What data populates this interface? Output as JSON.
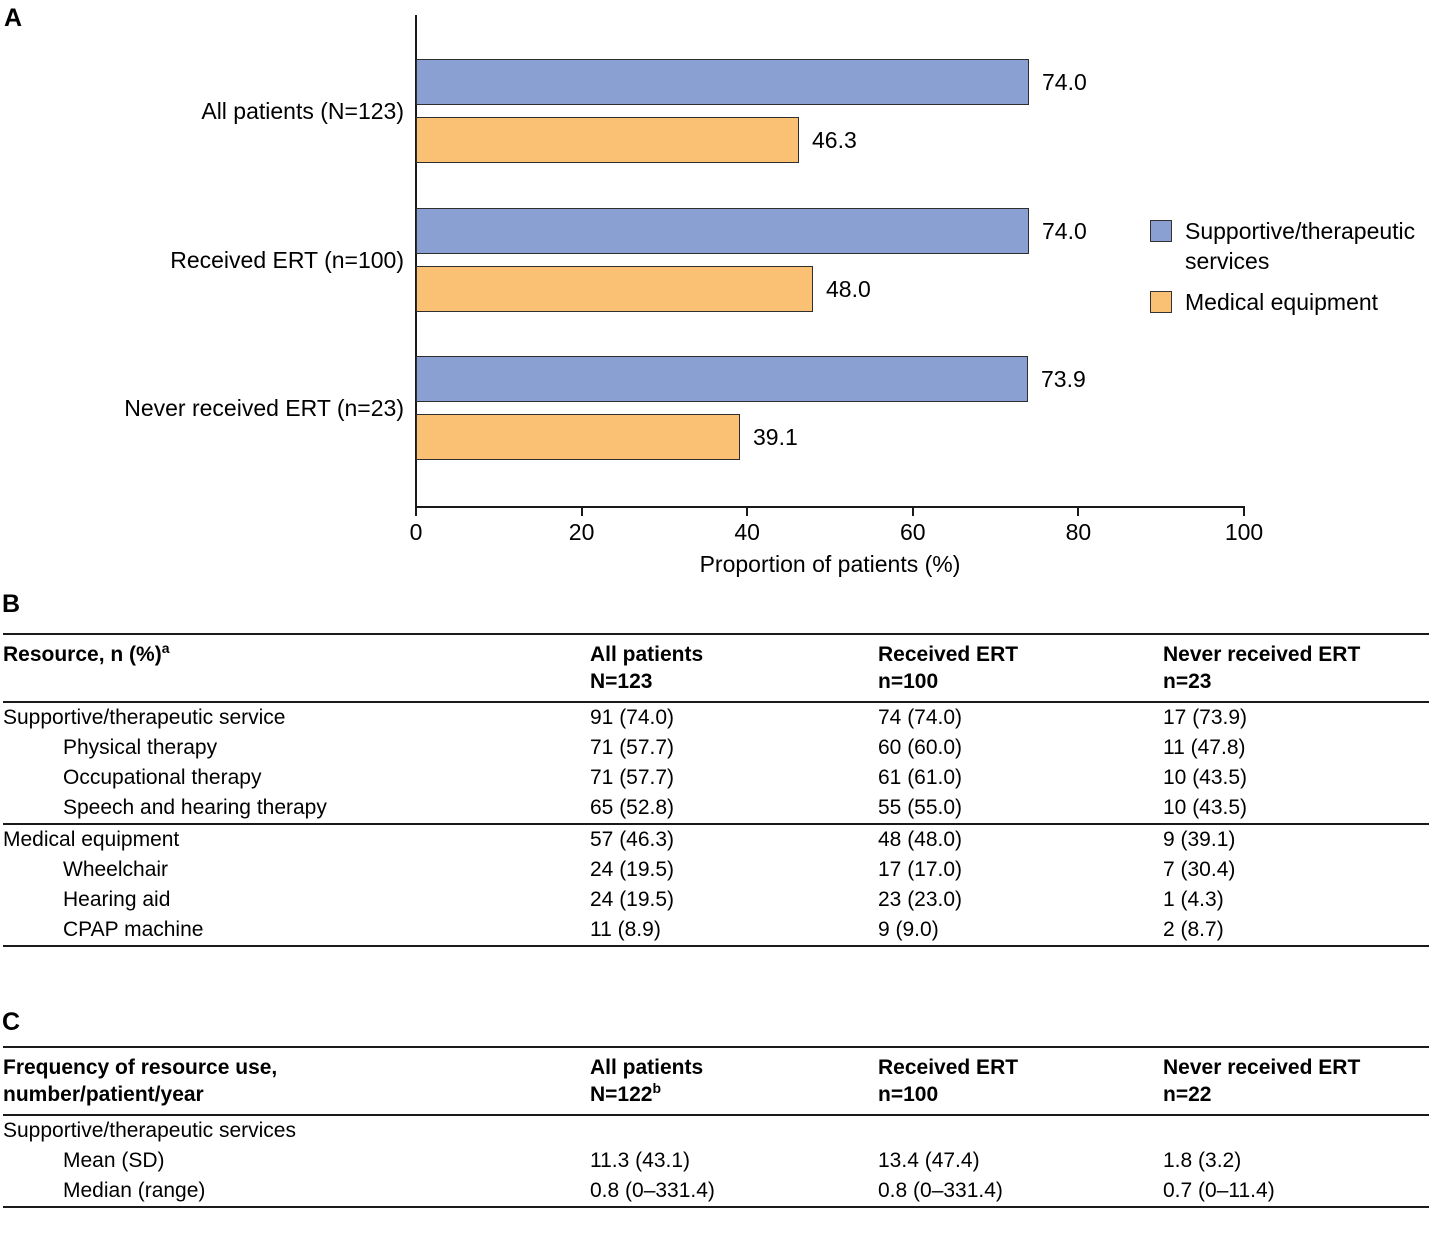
{
  "figure": {
    "panel_a_label": "A",
    "panel_b_label": "B",
    "panel_c_label": "C"
  },
  "chart_data": {
    "type": "bar",
    "orientation": "horizontal",
    "title": "",
    "xlabel": "Proportion of patients (%)",
    "xlim": [
      0,
      100
    ],
    "xticks": [
      0,
      20,
      40,
      60,
      80,
      100
    ],
    "xtick_labels": [
      "0",
      "20",
      "40",
      "60",
      "80",
      "100"
    ],
    "grid": false,
    "legend_position": "right",
    "categories": [
      "All patients (N=123)",
      "Received ERT (n=100)",
      "Never received ERT (n=23)"
    ],
    "series": [
      {
        "name": "Supportive/therapeutic services",
        "color": "#8AA0D3",
        "values": [
          74.0,
          74.0,
          73.9
        ],
        "value_labels": [
          "74.0",
          "74.0",
          "73.9"
        ]
      },
      {
        "name": "Medical equipment",
        "color": "#FAC074",
        "values": [
          46.3,
          48.0,
          39.1
        ],
        "value_labels": [
          "46.3",
          "48.0",
          "39.1"
        ]
      }
    ]
  },
  "panel_a": {
    "legend": [
      {
        "label": "Supportive/therapeutic services",
        "color": "#8AA0D3"
      },
      {
        "label": "Medical equipment",
        "color": "#FAC074"
      }
    ]
  },
  "panel_b": {
    "table": {
      "header": {
        "col1": {
          "lines": [
            "Resource, n (%)"
          ],
          "sup": "a"
        },
        "cols": [
          {
            "lines": [
              "All patients",
              "N=123"
            ],
            "sup": null
          },
          {
            "lines": [
              "Received ERT",
              "n=100"
            ],
            "sup": null
          },
          {
            "lines": [
              "Never received ERT",
              "n=23"
            ],
            "sup": null
          }
        ]
      },
      "rows": [
        {
          "label": "Supportive/therapeutic service",
          "indent": false,
          "rule_above": false,
          "values": [
            "91 (74.0)",
            "74 (74.0)",
            "17 (73.9)"
          ]
        },
        {
          "label": "Physical therapy",
          "indent": true,
          "rule_above": false,
          "values": [
            "71 (57.7)",
            "60 (60.0)",
            "11 (47.8)"
          ]
        },
        {
          "label": "Occupational therapy",
          "indent": true,
          "rule_above": false,
          "values": [
            "71 (57.7)",
            "61 (61.0)",
            "10 (43.5)"
          ]
        },
        {
          "label": "Speech and hearing therapy",
          "indent": true,
          "rule_above": false,
          "values": [
            "65 (52.8)",
            "55 (55.0)",
            "10 (43.5)"
          ]
        },
        {
          "label": "Medical equipment",
          "indent": false,
          "rule_above": true,
          "values": [
            "57 (46.3)",
            "48 (48.0)",
            "9 (39.1)"
          ]
        },
        {
          "label": "Wheelchair",
          "indent": true,
          "rule_above": false,
          "values": [
            "24 (19.5)",
            "17 (17.0)",
            "7 (30.4)"
          ]
        },
        {
          "label": "Hearing aid",
          "indent": true,
          "rule_above": false,
          "values": [
            "24 (19.5)",
            "23 (23.0)",
            "1 (4.3)"
          ]
        },
        {
          "label": "CPAP machine",
          "indent": true,
          "rule_above": false,
          "values": [
            "11 (8.9)",
            "9 (9.0)",
            "2 (8.7)"
          ]
        }
      ]
    }
  },
  "panel_c": {
    "table": {
      "header": {
        "col1": {
          "lines": [
            "Frequency of resource use,",
            "number/patient/year"
          ],
          "sup": null
        },
        "cols": [
          {
            "lines": [
              "All patients",
              "N=122"
            ],
            "sup": "b"
          },
          {
            "lines": [
              "Received ERT",
              "n=100"
            ],
            "sup": null
          },
          {
            "lines": [
              "Never received ERT",
              "n=22"
            ],
            "sup": null
          }
        ]
      },
      "rows": [
        {
          "label": "Supportive/therapeutic services",
          "indent": false,
          "rule_above": false,
          "values": [
            "",
            "",
            ""
          ]
        },
        {
          "label": "Mean (SD)",
          "indent": true,
          "rule_above": false,
          "values": [
            "11.3 (43.1)",
            "13.4 (47.4)",
            "1.8 (3.2)"
          ]
        },
        {
          "label": "Median (range)",
          "indent": true,
          "rule_above": false,
          "values": [
            "0.8 (0–331.4)",
            "0.8 (0–331.4)",
            "0.7 (0–11.4)"
          ]
        }
      ]
    }
  }
}
